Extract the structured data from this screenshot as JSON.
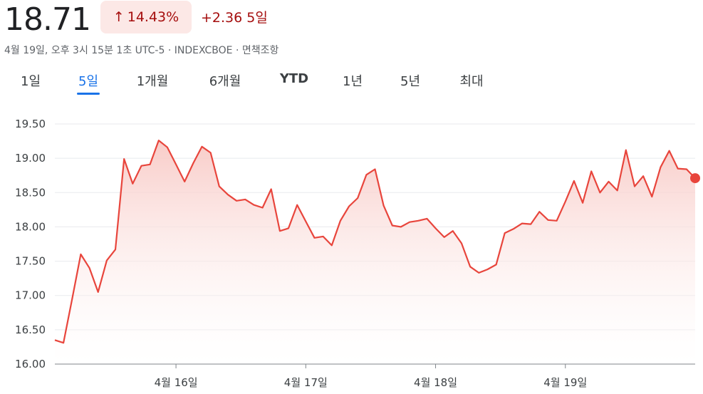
{
  "header": {
    "price": "18.71",
    "percent_change": "14.43%",
    "arrow": "↑",
    "abs_change": "+2.36",
    "period": "5일",
    "meta": "4월 19일, 오후 3시 15분 1초 UTC-5 · INDEXCBOE · 면책조항"
  },
  "tabs": [
    {
      "label": "1일",
      "active": false
    },
    {
      "label": "5일",
      "active": true
    },
    {
      "label": "1개월",
      "active": false
    },
    {
      "label": "6개월",
      "active": false
    },
    {
      "label": "YTD",
      "active": false
    },
    {
      "label": "1년",
      "active": false
    },
    {
      "label": "5년",
      "active": false
    },
    {
      "label": "최대",
      "active": false
    }
  ],
  "colors": {
    "line": "#e8453c",
    "fill_top": "#f8c9c5",
    "grid": "#e8eaed",
    "accent": "#1a73e8",
    "negative_text": "#a50e0e"
  },
  "chart_data": {
    "type": "area",
    "ylim": [
      16.0,
      19.5
    ],
    "yticks": [
      16.0,
      16.5,
      17.0,
      17.5,
      18.0,
      18.5,
      19.0,
      19.5
    ],
    "ytick_labels": [
      "16.00",
      "16.50",
      "17.00",
      "17.50",
      "18.00",
      "18.50",
      "19.00",
      "19.50"
    ],
    "xticks": [
      {
        "label": "4월 16일",
        "index": 14.0
      },
      {
        "label": "4월 17일",
        "index": 29.0
      },
      {
        "label": "4월 18일",
        "index": 44.0
      },
      {
        "label": "4월 19일",
        "index": 59.0
      }
    ],
    "x_count": 75,
    "values": [
      16.35,
      16.31,
      16.95,
      17.6,
      17.4,
      17.05,
      17.51,
      17.67,
      18.99,
      18.63,
      18.89,
      18.91,
      19.26,
      19.16,
      18.91,
      18.66,
      18.93,
      19.17,
      19.08,
      18.59,
      18.47,
      18.38,
      18.4,
      18.32,
      18.28,
      18.55,
      17.94,
      17.98,
      18.32,
      18.08,
      17.84,
      17.86,
      17.73,
      18.09,
      18.3,
      18.42,
      18.76,
      18.84,
      18.31,
      18.02,
      18.0,
      18.07,
      18.09,
      18.12,
      17.98,
      17.85,
      17.94,
      17.76,
      17.42,
      17.33,
      17.38,
      17.45,
      17.91,
      17.97,
      18.05,
      18.04,
      18.22,
      18.1,
      18.09,
      18.37,
      18.67,
      18.35,
      18.81,
      18.5,
      18.66,
      18.53,
      19.12,
      18.59,
      18.74,
      18.44,
      18.87,
      19.11,
      18.85,
      18.84,
      18.71
    ],
    "last_value": 18.71
  }
}
